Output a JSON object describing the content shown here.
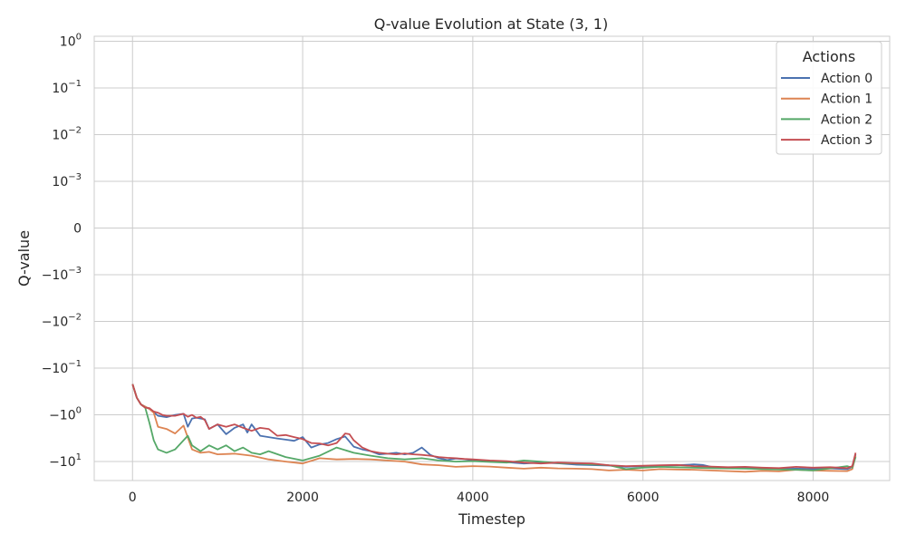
{
  "chart_data": {
    "type": "line",
    "title": "Q-value Evolution at State (3, 1)",
    "xlabel": "Timestep",
    "ylabel": "Q-value",
    "xlim": [
      -450,
      8900
    ],
    "x_ticks": [
      0,
      2000,
      4000,
      6000,
      8000
    ],
    "y_scale": "symlog",
    "y_ticks": [
      {
        "main": "10",
        "exp": "0",
        "value": 1
      },
      {
        "main": "10",
        "exp": "−1",
        "value": 0.1
      },
      {
        "main": "10",
        "exp": "−2",
        "value": 0.01
      },
      {
        "main": "10",
        "exp": "−3",
        "value": 0.001
      },
      {
        "main": "0",
        "exp": "",
        "value": 0
      },
      {
        "main": "−10",
        "exp": "−3",
        "value": -0.001
      },
      {
        "main": "−10",
        "exp": "−2",
        "value": -0.01
      },
      {
        "main": "−10",
        "exp": "−1",
        "value": -0.1
      },
      {
        "main": "−10",
        "exp": "0",
        "value": -1
      },
      {
        "main": "−10",
        "exp": "1",
        "value": -10
      }
    ],
    "grid": true,
    "legend": {
      "title": "Actions",
      "position": "top-right"
    },
    "series": [
      {
        "name": "Action 0",
        "color": "#4c72b0",
        "x": [
          0,
          50,
          100,
          200,
          300,
          400,
          500,
          600,
          650,
          700,
          750,
          850,
          900,
          1000,
          1100,
          1200,
          1300,
          1350,
          1400,
          1500,
          1600,
          1700,
          1800,
          1900,
          2000,
          2100,
          2200,
          2300,
          2400,
          2500,
          2600,
          2700,
          2800,
          2900,
          3000,
          3100,
          3200,
          3300,
          3400,
          3450,
          3500,
          3600,
          3700,
          3800,
          3900,
          4000,
          4200,
          4400,
          4600,
          4800,
          5000,
          5200,
          5400,
          5600,
          5800,
          6000,
          6200,
          6400,
          6600,
          6700,
          6800,
          7000,
          7200,
          7400,
          7600,
          7800,
          8000,
          8200,
          8400,
          8460,
          8500
        ],
        "y": [
          -0.22,
          -0.43,
          -0.6,
          -0.75,
          -1.05,
          -1.12,
          -1.0,
          -0.95,
          -1.8,
          -1.2,
          -1.15,
          -1.25,
          -2.0,
          -1.6,
          -2.6,
          -1.9,
          -1.6,
          -2.4,
          -1.6,
          -2.8,
          -3.0,
          -3.2,
          -3.4,
          -3.6,
          -3.0,
          -5.0,
          -4.3,
          -4.0,
          -3.3,
          -2.9,
          -4.8,
          -5.5,
          -6.0,
          -7.0,
          -6.8,
          -6.5,
          -7.0,
          -6.5,
          -5.0,
          -6.0,
          -7.2,
          -8.5,
          -9.3,
          -8.6,
          -8.9,
          -9.4,
          -9.8,
          -10.3,
          -11.0,
          -10.5,
          -10.9,
          -11.6,
          -11.9,
          -12.2,
          -13.0,
          -12.5,
          -12.2,
          -12.0,
          -11.5,
          -11.8,
          -13.0,
          -13.5,
          -13.8,
          -14.0,
          -14.3,
          -14.2,
          -14.4,
          -14.0,
          -14.6,
          -13.0,
          -7.0
        ]
      },
      {
        "name": "Action 1",
        "color": "#dd8452",
        "x": [
          0,
          50,
          100,
          200,
          250,
          300,
          400,
          500,
          600,
          700,
          800,
          900,
          1000,
          1200,
          1400,
          1600,
          1800,
          2000,
          2200,
          2400,
          2600,
          2800,
          3000,
          3200,
          3400,
          3600,
          3800,
          4000,
          4200,
          4400,
          4600,
          4800,
          5000,
          5200,
          5400,
          5600,
          5800,
          6000,
          6200,
          6400,
          6600,
          6800,
          7000,
          7200,
          7400,
          7600,
          7800,
          8000,
          8200,
          8400,
          8460,
          8500
        ],
        "y": [
          -0.22,
          -0.43,
          -0.6,
          -0.75,
          -0.9,
          -1.8,
          -2.0,
          -2.5,
          -1.7,
          -5.5,
          -6.5,
          -6.2,
          -7.0,
          -6.8,
          -7.5,
          -9.0,
          -10.0,
          -11.0,
          -8.5,
          -9.0,
          -8.8,
          -9.0,
          -9.5,
          -10.0,
          -11.5,
          -12.0,
          -13.0,
          -12.5,
          -12.8,
          -13.5,
          -14.2,
          -13.5,
          -14.0,
          -14.2,
          -14.5,
          -15.5,
          -15.0,
          -15.5,
          -14.5,
          -14.8,
          -15.0,
          -15.5,
          -16.0,
          -16.5,
          -15.8,
          -16.2,
          -15.0,
          -15.5,
          -15.8,
          -16.0,
          -14.5,
          -7.5
        ]
      },
      {
        "name": "Action 2",
        "color": "#55a868",
        "x": [
          0,
          50,
          100,
          150,
          200,
          250,
          300,
          400,
          500,
          600,
          650,
          700,
          800,
          900,
          1000,
          1100,
          1200,
          1300,
          1400,
          1500,
          1600,
          1800,
          2000,
          2200,
          2400,
          2600,
          2800,
          3000,
          3200,
          3400,
          3600,
          3800,
          4000,
          4200,
          4400,
          4600,
          4800,
          5000,
          5200,
          5400,
          5600,
          5800,
          6000,
          6200,
          6400,
          6600,
          6800,
          7000,
          7200,
          7400,
          7600,
          7800,
          8000,
          8200,
          8400,
          8460,
          8500
        ],
        "y": [
          -0.22,
          -0.43,
          -0.6,
          -0.7,
          -1.5,
          -3.5,
          -5.5,
          -6.5,
          -5.5,
          -3.5,
          -2.8,
          -4.5,
          -6.0,
          -4.5,
          -5.5,
          -4.5,
          -6.0,
          -5.0,
          -6.5,
          -7.0,
          -6.0,
          -8.0,
          -9.5,
          -7.5,
          -5.0,
          -6.5,
          -7.5,
          -8.5,
          -9.0,
          -8.5,
          -9.5,
          -10.0,
          -9.8,
          -10.2,
          -10.5,
          -9.5,
          -10.0,
          -10.8,
          -11.0,
          -11.5,
          -12.0,
          -14.5,
          -13.5,
          -13.0,
          -13.2,
          -13.5,
          -13.8,
          -14.0,
          -14.2,
          -14.5,
          -14.8,
          -15.0,
          -15.5,
          -14.0,
          -12.5,
          -13.5,
          -8.0
        ]
      },
      {
        "name": "Action 3",
        "color": "#c44e52",
        "x": [
          0,
          50,
          100,
          150,
          200,
          250,
          300,
          350,
          400,
          500,
          600,
          650,
          700,
          750,
          800,
          850,
          900,
          1000,
          1100,
          1200,
          1300,
          1400,
          1500,
          1600,
          1700,
          1800,
          1900,
          2000,
          2100,
          2200,
          2300,
          2400,
          2500,
          2550,
          2600,
          2700,
          2800,
          2900,
          3000,
          3100,
          3200,
          3300,
          3400,
          3500,
          3600,
          3700,
          3800,
          3900,
          4000,
          4200,
          4400,
          4600,
          4800,
          5000,
          5200,
          5400,
          5600,
          5800,
          6000,
          6200,
          6400,
          6600,
          6800,
          7000,
          7200,
          7400,
          7600,
          7800,
          8000,
          8200,
          8400,
          8460,
          8500
        ],
        "y": [
          -0.22,
          -0.43,
          -0.6,
          -0.7,
          -0.72,
          -0.85,
          -0.9,
          -1.0,
          -1.05,
          -1.05,
          -0.95,
          -1.1,
          -1.0,
          -1.15,
          -1.1,
          -1.3,
          -2.0,
          -1.6,
          -1.8,
          -1.6,
          -1.9,
          -2.2,
          -1.9,
          -2.0,
          -2.8,
          -2.7,
          -3.0,
          -3.3,
          -4.0,
          -4.1,
          -4.5,
          -4.0,
          -2.5,
          -2.6,
          -3.5,
          -5.0,
          -6.0,
          -6.5,
          -6.8,
          -7.0,
          -6.7,
          -7.0,
          -7.2,
          -7.5,
          -8.0,
          -8.3,
          -8.5,
          -8.8,
          -9.0,
          -9.5,
          -9.8,
          -10.5,
          -11.0,
          -10.5,
          -10.8,
          -11.0,
          -12.0,
          -12.5,
          -12.3,
          -12.0,
          -11.8,
          -12.5,
          -12.8,
          -13.2,
          -13.0,
          -13.5,
          -13.8,
          -13.0,
          -13.5,
          -13.2,
          -13.8,
          -12.5,
          -6.5
        ]
      }
    ]
  }
}
